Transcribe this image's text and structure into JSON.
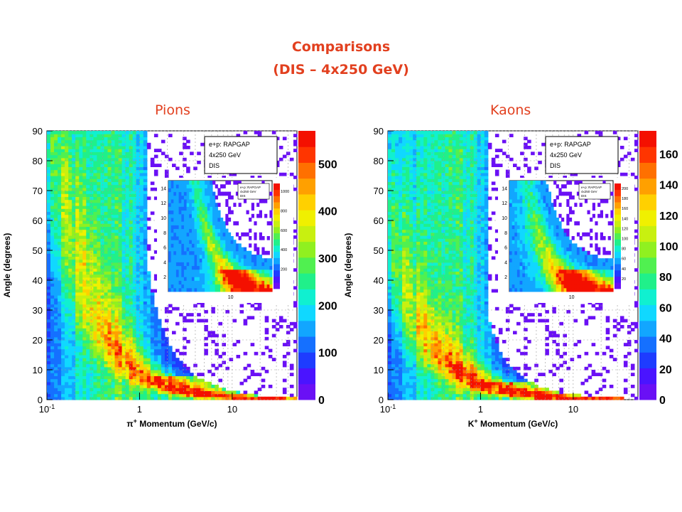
{
  "slide": {
    "title_line1": "Comparisons",
    "title_line2": "(DIS – 4x250 GeV)",
    "left_label": "Pions",
    "right_label": "Kaons",
    "title_color": "#e2401f"
  },
  "chart_data": [
    {
      "type": "heatmap",
      "name": "Pions",
      "xlabel_prefix": "π",
      "xlabel_sup": "+",
      "xlabel_rest": " Momentum (GeV/c)",
      "ylabel": "Angle (degrees)",
      "x_scale": "log",
      "xlim": [
        0.1,
        50
      ],
      "ylim": [
        0,
        90
      ],
      "x_ticks": [
        {
          "value": 0.1,
          "base": "10",
          "sup": "-1"
        },
        {
          "value": 1,
          "label": "1"
        },
        {
          "value": 10,
          "label": "10"
        }
      ],
      "y_ticks": [
        0,
        10,
        20,
        30,
        40,
        50,
        60,
        70,
        80,
        90
      ],
      "z_ticks": [
        0,
        100,
        200,
        300,
        400,
        500
      ],
      "z_max": 570,
      "ridge_constant": 10,
      "ridge_width": 0.55,
      "hot_region_max_angle": 8,
      "grid": true,
      "legend": {
        "entries": [
          "e+p: RAPGAP",
          "4x250 GeV",
          "DIS"
        ],
        "placement": "top-right"
      },
      "inset": {
        "ylim": [
          0,
          15
        ],
        "y_ticks": [
          2,
          4,
          6,
          8,
          10,
          12,
          14
        ],
        "x_ticks": [
          {
            "value": 10,
            "label": "10"
          }
        ],
        "z_ticks": [
          200,
          400,
          600,
          800,
          1000
        ],
        "z_max": 1080,
        "legend": [
          "e+p: RAPGAP",
          "4x250 GeV",
          "DIS"
        ]
      }
    },
    {
      "type": "heatmap",
      "name": "Kaons",
      "xlabel_prefix": "K",
      "xlabel_sup": "+",
      "xlabel_rest": " Momentum (GeV/c)",
      "ylabel": "Angle (degrees)",
      "x_scale": "log",
      "xlim": [
        0.1,
        50
      ],
      "ylim": [
        0,
        90
      ],
      "x_ticks": [
        {
          "value": 0.1,
          "base": "10",
          "sup": "-1"
        },
        {
          "value": 1,
          "label": "1"
        },
        {
          "value": 10,
          "label": "10"
        }
      ],
      "y_ticks": [
        0,
        10,
        20,
        30,
        40,
        50,
        60,
        70,
        80,
        90
      ],
      "z_ticks": [
        0,
        20,
        40,
        60,
        80,
        100,
        120,
        140,
        160
      ],
      "z_max": 175,
      "ridge_constant": 6,
      "ridge_width": 0.6,
      "hot_region_max_angle": 6,
      "grid": true,
      "legend": {
        "entries": [
          "e+p: RAPGAP",
          "4x250 GeV",
          "DIS"
        ],
        "placement": "top-right"
      },
      "inset": {
        "ylim": [
          0,
          15
        ],
        "y_ticks": [
          2,
          4,
          6,
          8,
          10,
          12,
          14
        ],
        "x_ticks": [
          {
            "value": 10,
            "label": "10"
          }
        ],
        "z_ticks": [
          20,
          40,
          60,
          80,
          100,
          120,
          140,
          160,
          180,
          200
        ],
        "z_max": 210,
        "legend": [
          "e+p: RAPGAP",
          "4x250 GeV",
          "DIS"
        ]
      }
    }
  ]
}
